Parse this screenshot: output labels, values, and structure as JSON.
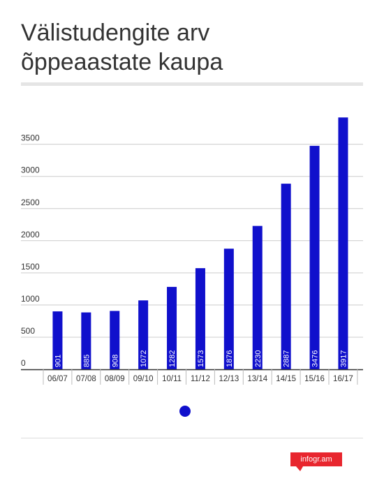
{
  "title_lines": [
    "Välistudengite arv",
    "õppeaastate kaupa"
  ],
  "brand": "infogr.am",
  "colors": {
    "bar": "#1010cc",
    "grid": "#cccccc",
    "axis": "#333333",
    "text": "#333333",
    "brand": "#e8262e"
  },
  "chart_data": {
    "type": "bar",
    "title": "Välistudengite arv õppeaastate kaupa",
    "categories": [
      "06/07",
      "07/08",
      "08/09",
      "09/10",
      "10/11",
      "11/12",
      "12/13",
      "13/14",
      "14/15",
      "15/16",
      "16/17"
    ],
    "values": [
      901,
      885,
      908,
      1072,
      1282,
      1573,
      1876,
      2230,
      2887,
      3476,
      3917
    ],
    "yticks": [
      0,
      500,
      1000,
      1500,
      2000,
      2500,
      3000,
      3500
    ],
    "ylim": [
      0,
      4000
    ],
    "grid": true,
    "legend": {
      "position": "bottom-center",
      "entries": [
        ""
      ]
    },
    "xlabel": "",
    "ylabel": ""
  }
}
